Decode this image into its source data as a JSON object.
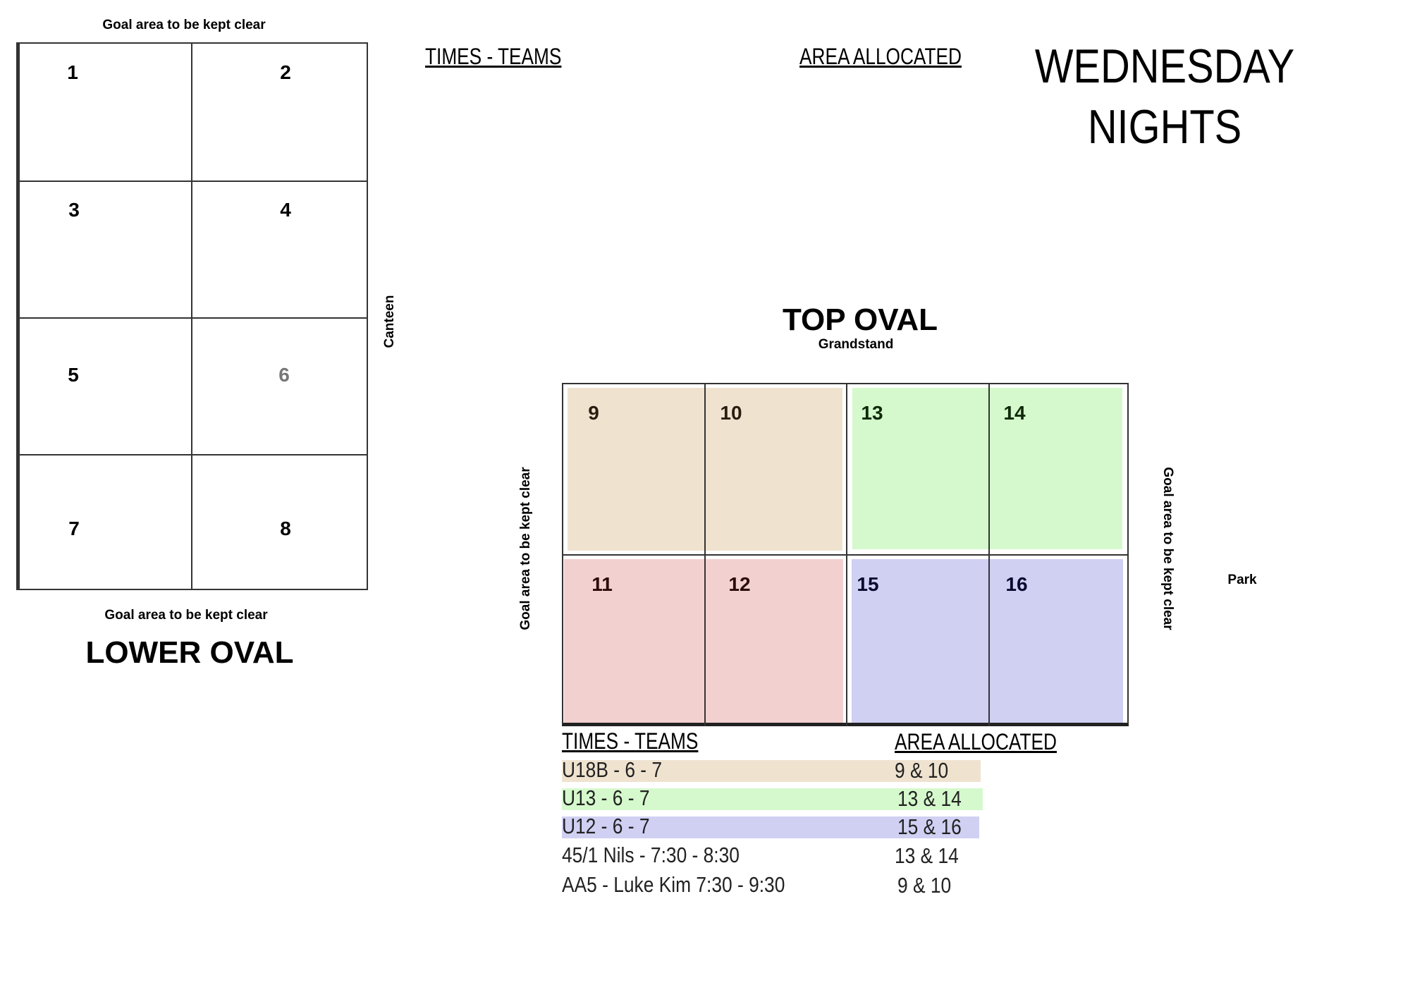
{
  "lower_oval": {
    "top_note": "Goal area to be kept clear",
    "fields": [
      "1",
      "2",
      "3",
      "4",
      "5",
      "6",
      "7",
      "8"
    ],
    "bottom_note": "Goal area to be kept clear",
    "title": "LOWER OVAL",
    "side_label": "Canteen"
  },
  "top_legend": {
    "times_header": "TIMES - TEAMS",
    "area_header": "AREA ALLOCATED"
  },
  "heading": {
    "line1": "WEDNESDAY",
    "line2": "NIGHTS"
  },
  "top_oval": {
    "title": "TOP OVAL",
    "subtitle": "Grandstand",
    "left_note": "Goal area to be kept clear",
    "right_note": "Goal area to be kept clear",
    "side_label": "Park",
    "fields": [
      "9",
      "10",
      "13",
      "14",
      "11",
      "12",
      "15",
      "16"
    ]
  },
  "schedule": {
    "times_header": "TIMES - TEAMS",
    "area_header": "AREA ALLOCATED",
    "rows": [
      [
        "U18B - 6 - 7",
        "9 & 10"
      ],
      [
        "U13 - 6 - 7",
        "13 & 14"
      ],
      [
        "U12 - 6 - 7",
        "15 & 16"
      ],
      [
        "45/1 Nils - 7:30 - 8:30",
        "13 & 14"
      ],
      [
        "AA5 - Luke Kim 7:30 - 9:30",
        "9 & 10"
      ]
    ]
  }
}
